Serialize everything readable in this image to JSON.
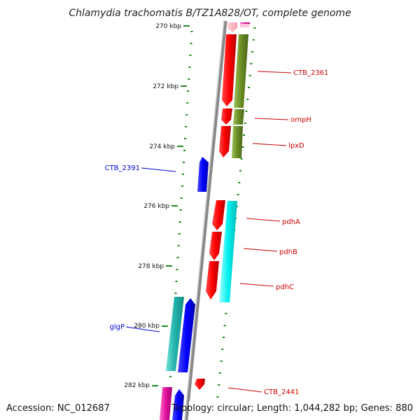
{
  "title": "Chlamydia trachomatis B/TZ1A828/OT, complete genome",
  "footer": {
    "accession": "Accession: NC_012687",
    "topology": "Topology: circular; Length: 1,044,282 bp; Genes: 880"
  },
  "ticks": [
    "270 kbp",
    "272 kbp",
    "274 kbp",
    "276 kbp",
    "278 kbp",
    "280 kbp",
    "282 kbp"
  ],
  "genes": [
    {
      "name": "CTB_2361",
      "color": "#cc0000"
    },
    {
      "name": "ompH",
      "color": "#cc0000"
    },
    {
      "name": "lpxD",
      "color": "#cc0000"
    },
    {
      "name": "CTB_2391",
      "color": "#0000cc"
    },
    {
      "name": "pdhA",
      "color": "#cc0000"
    },
    {
      "name": "pdhB",
      "color": "#cc0000"
    },
    {
      "name": "pdhC",
      "color": "#cc0000"
    },
    {
      "name": "glgP",
      "color": "#0000cc"
    },
    {
      "name": "CTB_2441",
      "color": "#cc0000"
    }
  ],
  "colors": {
    "forward_track": "#ff0000",
    "cog_olive": "#6b8e23",
    "cog_cyan": "#00e5e5",
    "reverse_track": "#0000ff",
    "cog_teal": "#20b2aa",
    "cog_pink": "#e0109c",
    "tick_mark": "#1a8a1a",
    "backbone": "#808080"
  }
}
